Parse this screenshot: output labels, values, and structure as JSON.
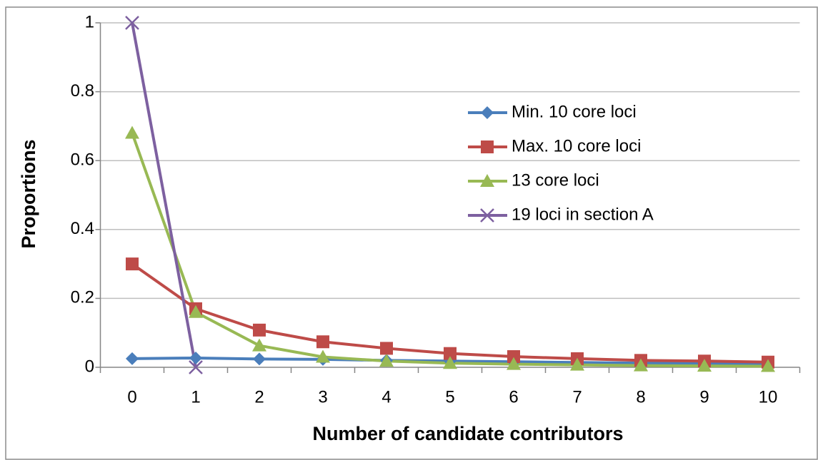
{
  "chart_data": {
    "type": "line",
    "xlabel": "Number of candidate contributors",
    "ylabel": "Proportions",
    "categories": [
      0,
      1,
      2,
      3,
      4,
      5,
      6,
      7,
      8,
      9,
      10
    ],
    "series": [
      {
        "name": "Min. 10 core loci",
        "color": "#4a7ebb",
        "marker": "diamond",
        "values": [
          0.025,
          0.027,
          0.024,
          0.023,
          0.02,
          0.018,
          0.016,
          0.014,
          0.012,
          0.011,
          0.01
        ]
      },
      {
        "name": "Max. 10 core loci",
        "color": "#be4b48",
        "marker": "square",
        "values": [
          0.3,
          0.17,
          0.108,
          0.074,
          0.055,
          0.04,
          0.031,
          0.025,
          0.02,
          0.018,
          0.015
        ]
      },
      {
        "name": "13 core loci",
        "color": "#98b954",
        "marker": "triangle",
        "values": [
          0.68,
          0.16,
          0.063,
          0.03,
          0.018,
          0.012,
          0.009,
          0.007,
          0.005,
          0.004,
          0.003
        ]
      },
      {
        "name": "19 loci in section A",
        "color": "#7d60a0",
        "marker": "x",
        "values": [
          1,
          0,
          null,
          null,
          null,
          null,
          null,
          null,
          null,
          null,
          null
        ]
      }
    ],
    "ylim": [
      0,
      1
    ],
    "yticks": [
      0,
      0.2,
      0.4,
      0.6,
      0.8,
      1
    ],
    "grid": true,
    "legend": "right"
  }
}
